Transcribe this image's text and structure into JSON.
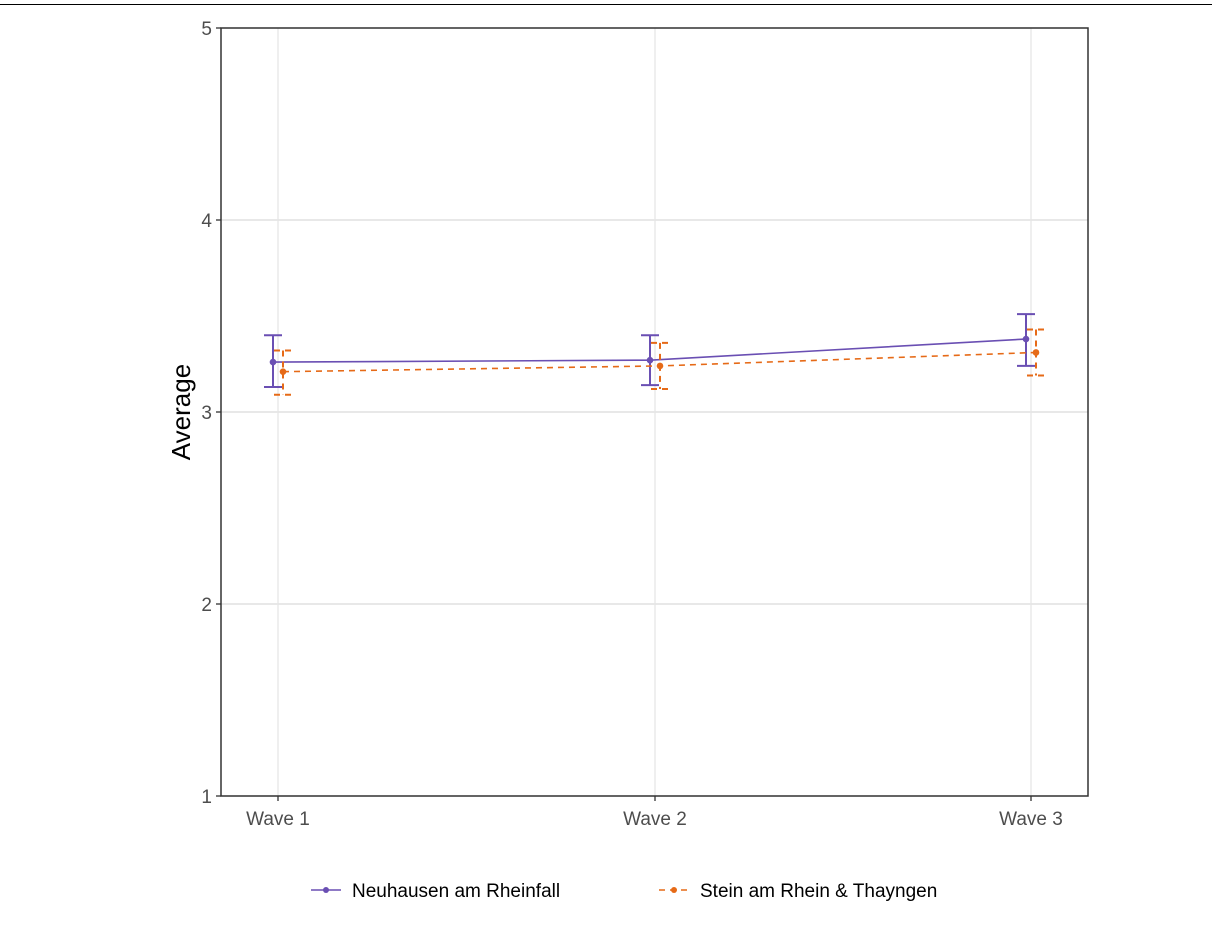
{
  "chart_data": {
    "type": "line",
    "title": "",
    "xlabel": "",
    "ylabel": "Average",
    "ylim": [
      1,
      5
    ],
    "yticks": [
      1,
      2,
      3,
      4,
      5
    ],
    "categories": [
      "Wave 1",
      "Wave 2",
      "Wave 3"
    ],
    "grid": true,
    "legend_position": "bottom",
    "series": [
      {
        "name": "Neuhausen am Rheinfall",
        "color": "#6a4fb3",
        "line_style": "solid",
        "values": [
          3.26,
          3.27,
          3.38
        ],
        "err_low": [
          3.13,
          3.14,
          3.24
        ],
        "err_high": [
          3.4,
          3.4,
          3.51
        ]
      },
      {
        "name": "Stein am Rhein & Thayngen",
        "color": "#e66a17",
        "line_style": "dashed",
        "values": [
          3.21,
          3.24,
          3.31
        ],
        "err_low": [
          3.09,
          3.12,
          3.19
        ],
        "err_high": [
          3.32,
          3.36,
          3.43
        ]
      }
    ]
  }
}
